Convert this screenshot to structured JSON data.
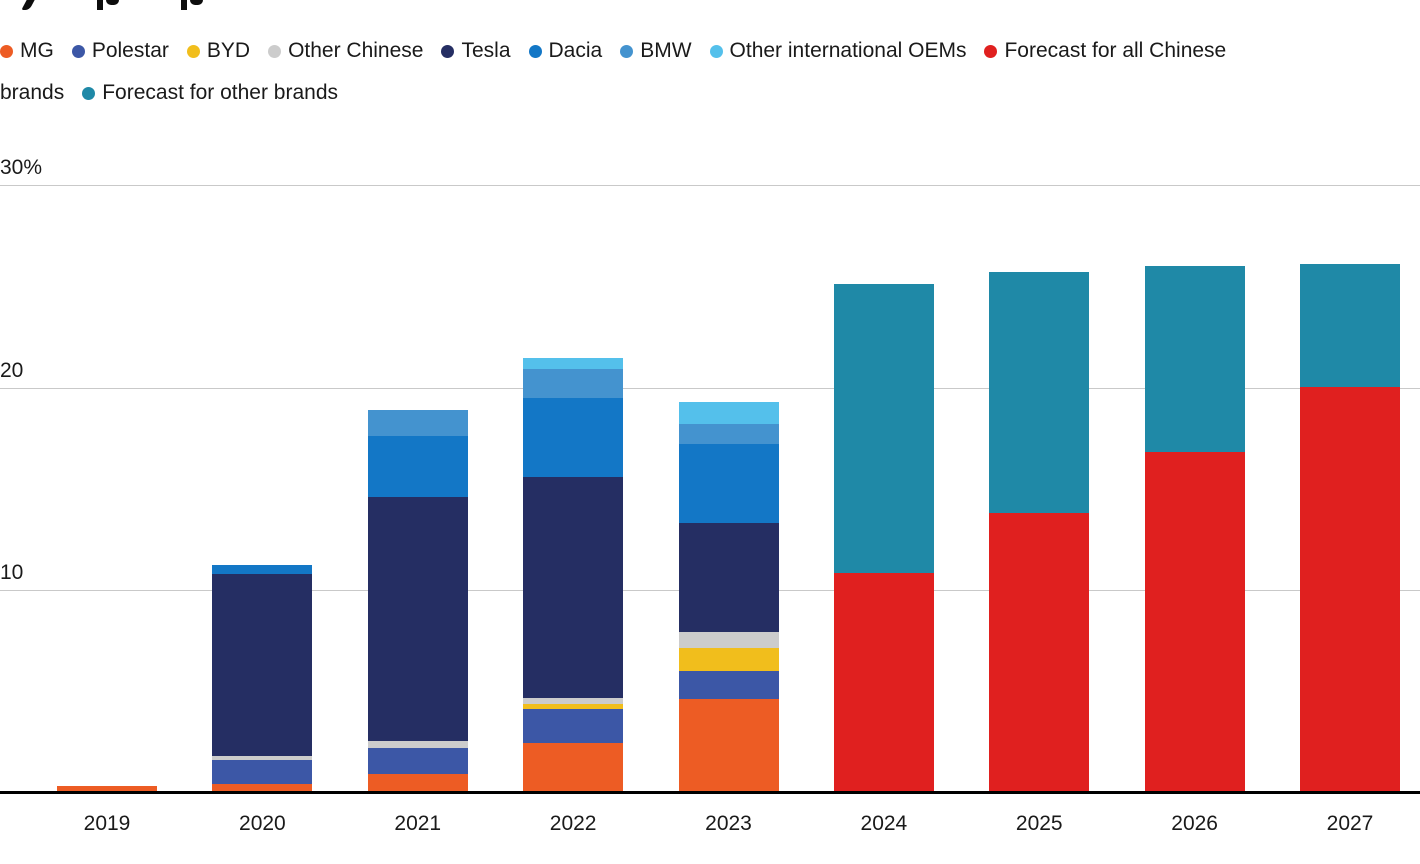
{
  "page": {
    "background": "#ffffff"
  },
  "legend": {
    "items": [
      {
        "label": "MG",
        "color": "#ED5C24"
      },
      {
        "label": "Polestar",
        "color": "#3C57A6"
      },
      {
        "label": "BYD",
        "color": "#F1BE1C"
      },
      {
        "label": "Other Chinese",
        "color": "#CCCCCC"
      },
      {
        "label": "Tesla",
        "color": "#252E63"
      },
      {
        "label": "Dacia",
        "color": "#1377C6"
      },
      {
        "label": "BMW",
        "color": "#4493CF"
      },
      {
        "label": "Other international OEMs",
        "color": "#54C0EB"
      },
      {
        "label": "Forecast for all Chinese brands",
        "color": "#E0201F"
      },
      {
        "label": "Forecast for other brands",
        "color": "#1F89A7"
      }
    ]
  },
  "chart_data": {
    "type": "bar",
    "stacked": true,
    "unit": "percent",
    "categories": [
      "2019",
      "2020",
      "2021",
      "2022",
      "2023",
      "2024",
      "2025",
      "2026",
      "2027"
    ],
    "series": [
      {
        "name": "MG",
        "color": "#ED5C24",
        "values": [
          0.3,
          0.4,
          0.9,
          2.4,
          4.6,
          0,
          0,
          0,
          0
        ]
      },
      {
        "name": "Polestar",
        "color": "#3C57A6",
        "values": [
          0,
          1.2,
          1.3,
          1.7,
          1.4,
          0,
          0,
          0,
          0
        ]
      },
      {
        "name": "BYD",
        "color": "#F1BE1C",
        "values": [
          0,
          0,
          0,
          0.25,
          1.1,
          0,
          0,
          0,
          0
        ]
      },
      {
        "name": "Other Chinese",
        "color": "#CCCCCC",
        "values": [
          0,
          0.2,
          0.3,
          0.3,
          0.8,
          0,
          0,
          0,
          0
        ]
      },
      {
        "name": "Tesla",
        "color": "#252E63",
        "values": [
          0,
          9.0,
          12.1,
          10.9,
          5.4,
          0,
          0,
          0,
          0
        ]
      },
      {
        "name": "Dacia",
        "color": "#1377C6",
        "values": [
          0,
          0.4,
          3.0,
          3.95,
          3.9,
          0,
          0,
          0,
          0
        ]
      },
      {
        "name": "BMW",
        "color": "#4493CF",
        "values": [
          0,
          0,
          1.3,
          1.4,
          1.0,
          0,
          0,
          0,
          0
        ]
      },
      {
        "name": "Other international OEMs",
        "color": "#54C0EB",
        "values": [
          0,
          0,
          0,
          0.55,
          1.1,
          0,
          0,
          0,
          0
        ]
      },
      {
        "name": "Forecast for all Chinese brands",
        "color": "#E0201F",
        "values": [
          0,
          0,
          0,
          0,
          0,
          10.8,
          13.8,
          16.8,
          20.0
        ]
      },
      {
        "name": "Forecast for other brands",
        "color": "#1F89A7",
        "values": [
          0,
          0,
          0,
          0,
          0,
          14.3,
          11.9,
          9.2,
          6.1
        ]
      }
    ],
    "y_axis": {
      "ticks": [
        "30%",
        "20",
        "10"
      ],
      "tick_values": [
        30,
        20,
        10
      ],
      "ylim": [
        0,
        30
      ],
      "grid": true
    },
    "legend_position": "top"
  }
}
